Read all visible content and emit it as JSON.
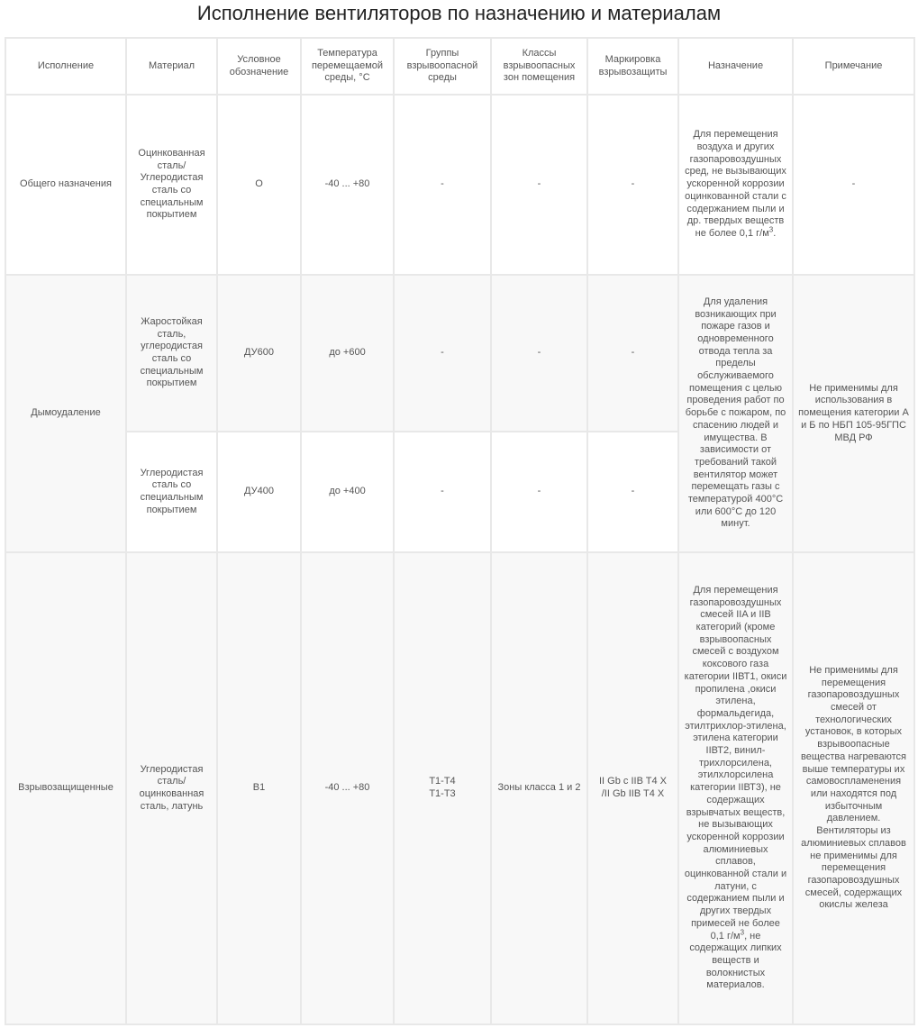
{
  "title": "Исполнение вентиляторов по назначению и материалам",
  "headers": [
    "Исполнение",
    "Материал",
    "Условное обозначение",
    "Температура перемещаемой среды, °С",
    "Группы взрывоопасной среды",
    "Классы взрывоопасных зон помещения",
    "Маркировка взрывозащиты",
    "Назначение",
    "Примечание"
  ],
  "rows": {
    "general": {
      "execution": "Общего назначения",
      "material": "Оцинкованная сталь/ Углеродистая сталь со специальным покрытием",
      "designation": "О",
      "temperature": "-40 ... +80",
      "groups": "-",
      "zones": "-",
      "marking": "-",
      "purpose": "Для перемещения воздуха и других газопаровоздушных сред, не вызывающих ускоренной коррозии оцинкованной стали с содержанием пыли и др. твердых веществ не более 0,1 г/м",
      "purpose_sup": "3",
      "purpose_end": ".",
      "note": "-"
    },
    "smoke": {
      "execution": "Дымоудаление",
      "purpose": "Для удаления возникающих при пожаре газов и одновременного отвода тепла за пределы обслуживаемого помещения с целью проведения работ по борьбе с пожаром, по спасению людей и имущества. В зависимости от требований такой вентилятор может перемещать газы с температурой 400°С или 600°С до 120 минут.",
      "note": "Не применимы для использования в помещения категории А и Б по НБП 105-95ГПС МВД РФ",
      "sub": [
        {
          "material": "Жаростойкая сталь, углеродистая сталь со специальным покрытием",
          "designation": "ДУ600",
          "temperature": "до +600",
          "groups": "-",
          "zones": "-",
          "marking": "-"
        },
        {
          "material": "Углеродистая сталь со специальным покрытием",
          "designation": "ДУ400",
          "temperature": "до +400",
          "groups": "-",
          "zones": "-",
          "marking": "-"
        }
      ]
    },
    "explosion": {
      "execution": "Взрывозащищенные",
      "material": "Углеродистая сталь/ оцинкованная сталь, латунь",
      "designation": "В1",
      "temperature": "-40 ... +80",
      "groups_1": "Т1-Т4",
      "groups_2": "Т1-Т3",
      "zones": "Зоны класса 1 и 2",
      "marking_1": "II Gb c IIB T4 X",
      "marking_2": "/II Gb  IIB T4 X",
      "purpose": "Для перемещения газопаровоздушных смесей IIA и IIB категорий (кроме взрывоопасных смесей с воздухом коксового газа категории  IIВТ1, окиси пропилена ,окиси этилена, формальдегида, этилтрихлор-этилена, этилена категории IIВТ2, винил-трихлорсилена, этилхлорсилена категории IIВТ3), не содержащих взрывчатых веществ, не вызывающих ускоренной коррозии алюминиевых сплавов, оцинкованной стали и латуни, с содержанием пыли и других твердых примесей не более 0,1 г/м",
      "purpose_sup": "3",
      "purpose_end": ", не содержащих липких веществ и волокнистых материалов.",
      "note": "Не применимы для перемещения газопаровоздушных смесей от технологических установок, в которых взрывоопасные вещества нагреваются выше температуры их самовоспламенения или находятся под избыточным давлением. Вентиляторы из алюминиевых сплавов не применимы для перемещения газопаровоздушных смесей, содержащих окислы железа"
    }
  }
}
